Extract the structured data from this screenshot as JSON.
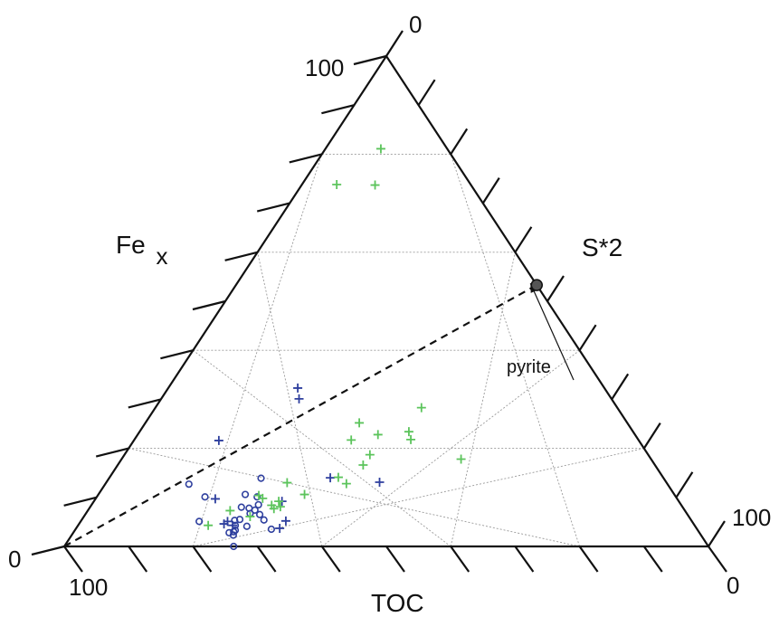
{
  "chart_data": {
    "type": "scatter",
    "subtype": "ternary",
    "axes": {
      "left": {
        "label": "Fe",
        "label_subscript": "x"
      },
      "right": {
        "label": "S*2"
      },
      "bottom": {
        "label": "TOC"
      }
    },
    "tick_labels": {
      "top": "0",
      "top_left": "100",
      "bottom_left_zero": "0",
      "bottom_left_hundred": "100",
      "bottom_right_hundred": "100",
      "bottom_right_zero": "0"
    },
    "grid": true,
    "gridline_step": 20,
    "series": [
      {
        "color": "#2e3f9e",
        "marker": "circle",
        "points": [
          [
            25.9,
            8.5,
            65.6
          ],
          [
            25.9,
            7.4,
            66.7
          ],
          [
            22.8,
            10.6,
            66.6
          ],
          [
            24.8,
            7.8,
            67.4
          ],
          [
            23.5,
            8.0,
            68.5
          ],
          [
            24.5,
            5.5,
            70.0
          ],
          [
            23.8,
            5.3,
            70.9
          ],
          [
            24.4,
            4.3,
            71.3
          ],
          [
            24.9,
            3.3,
            71.8
          ],
          [
            25.1,
            2.3,
            72.6
          ],
          [
            30.4,
            3.5,
            66.1
          ],
          [
            27.1,
            6.5,
            66.4
          ],
          [
            28.3,
            5.4,
            66.3
          ],
          [
            25.5,
            6.7,
            67.8
          ],
          [
            13.0,
            12.7,
            74.3
          ],
          [
            16.8,
            10.1,
            73.1
          ],
          [
            26.3,
            4.1,
            69.6
          ],
          [
            24.8,
            3.0,
            72.2
          ],
          [
            24.2,
            2.8,
            73.0
          ],
          [
            26.3,
            0.0,
            73.7
          ],
          [
            18.4,
            5.1,
            76.5
          ],
          [
            24.9,
            10.1,
            65.0
          ],
          [
            23.6,
            13.9,
            62.5
          ]
        ]
      },
      {
        "color": "#2e3f9e",
        "marker": "plus",
        "points": [
          [
            18.6,
            9.7,
            71.7
          ],
          [
            13.2,
            21.6,
            65.2
          ],
          [
            34.3,
            14.0,
            51.7
          ],
          [
            21.4,
            30.1,
            48.5
          ],
          [
            31.8,
            5.2,
            63.0
          ],
          [
            22.8,
            5.1,
            72.1
          ],
          [
            22.5,
            4.6,
            72.9
          ],
          [
            24.0,
            4.3,
            71.7
          ],
          [
            31.6,
            3.7,
            64.7
          ],
          [
            20.1,
            32.3,
            47.6
          ],
          [
            29.2,
            9.2,
            61.6
          ],
          [
            42.4,
            13.1,
            44.5
          ]
        ]
      },
      {
        "color": "#5cc45c",
        "marker": "plus",
        "points": [
          [
            8.6,
            81.1,
            10.3
          ],
          [
            5.4,
            73.8,
            20.8
          ],
          [
            11.4,
            73.7,
            14.9
          ],
          [
            33.2,
            25.2,
            41.6
          ],
          [
            38.1,
            18.7,
            43.2
          ],
          [
            41.8,
            23.4,
            34.8
          ],
          [
            42.9,
            21.8,
            35.3
          ],
          [
            41.3,
            28.3,
            30.4
          ],
          [
            33.7,
            21.7,
            44.6
          ],
          [
            37.3,
            22.8,
            39.9
          ],
          [
            38.1,
            16.6,
            45.3
          ],
          [
            52.7,
            17.8,
            29.5
          ],
          [
            37.4,
            12.8,
            49.8
          ],
          [
            35.5,
            14.1,
            50.4
          ],
          [
            28.1,
            13.0,
            58.9
          ],
          [
            32.0,
            10.6,
            57.4
          ],
          [
            25.9,
            9.8,
            64.3
          ],
          [
            28.7,
            9.2,
            62.1
          ],
          [
            28.7,
            7.7,
            63.6
          ],
          [
            22.1,
            7.3,
            70.6
          ],
          [
            28.0,
            8.4,
            63.6
          ],
          [
            20.2,
            4.3,
            75.5
          ],
          [
            25.8,
            6.1,
            68.1
          ],
          [
            29.5,
            8.1,
            62.4
          ],
          [
            25.0,
            10.4,
            64.6
          ]
        ]
      }
    ],
    "reference_line": {
      "style": "dashed",
      "from": [
        0,
        0,
        100
      ],
      "to": [
        46.7,
        53.3,
        0
      ]
    },
    "annotation": {
      "text": "pyrite",
      "point": [
        46.7,
        53.3,
        0
      ]
    }
  }
}
